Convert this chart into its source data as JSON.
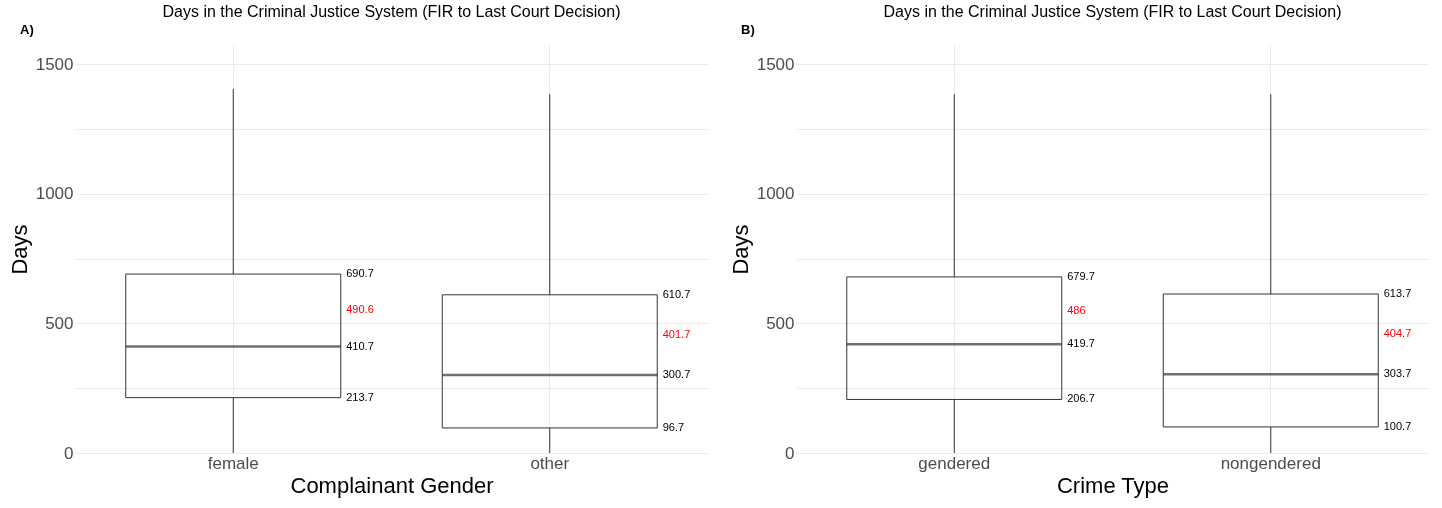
{
  "chart_data": [
    {
      "type": "box",
      "title": "Days in the Criminal Justice System (FIR to Last Court Decision)",
      "xlabel": "Complainant Gender",
      "ylabel": "Days",
      "categories": [
        "female",
        "other"
      ],
      "annotations": [
        "A)",
        "690.7",
        "490.6",
        "410.7",
        "213.7",
        "610.7",
        "401.7",
        "300.7",
        "96.7"
      ],
      "boxes": [
        {
          "low": 0,
          "q1": 213.7,
          "median": 410.7,
          "q3": 690.7,
          "high": 1405
        },
        {
          "low": 0,
          "q1": 96.7,
          "median": 300.7,
          "q3": 610.7,
          "high": 1385
        }
      ],
      "ylim": [
        0,
        1575
      ],
      "yticks": [
        0,
        {
          "value": 250,
          "label": null
        },
        500,
        {
          "value": 750,
          "label": null
        },
        1000,
        {
          "value": 1250,
          "label": null
        },
        1500
      ],
      "grid": true
    },
    {
      "type": "box",
      "title": "Days in the Criminal Justice System (FIR to Last Court Decision)",
      "xlabel": "Crime Type",
      "ylabel": "Days",
      "categories": [
        "gendered",
        "nongendered"
      ],
      "annotations": [
        "B)",
        "679.7",
        "486",
        "419.7",
        "206.7",
        "613.7",
        "404.7",
        "303.7",
        "100.7"
      ],
      "boxes": [
        {
          "low": 0,
          "q1": 206.7,
          "median": 419.7,
          "q3": 679.7,
          "high": 1385
        },
        {
          "low": 0,
          "q1": 100.7,
          "median": 303.7,
          "q3": 613.7,
          "high": 1385
        }
      ],
      "ylim": [
        0,
        1575
      ],
      "yticks": [
        0,
        {
          "value": 250,
          "label": null
        },
        500,
        {
          "value": 750,
          "label": null
        },
        1000,
        {
          "value": 1250,
          "label": null
        },
        1500
      ],
      "grid": true
    }
  ]
}
